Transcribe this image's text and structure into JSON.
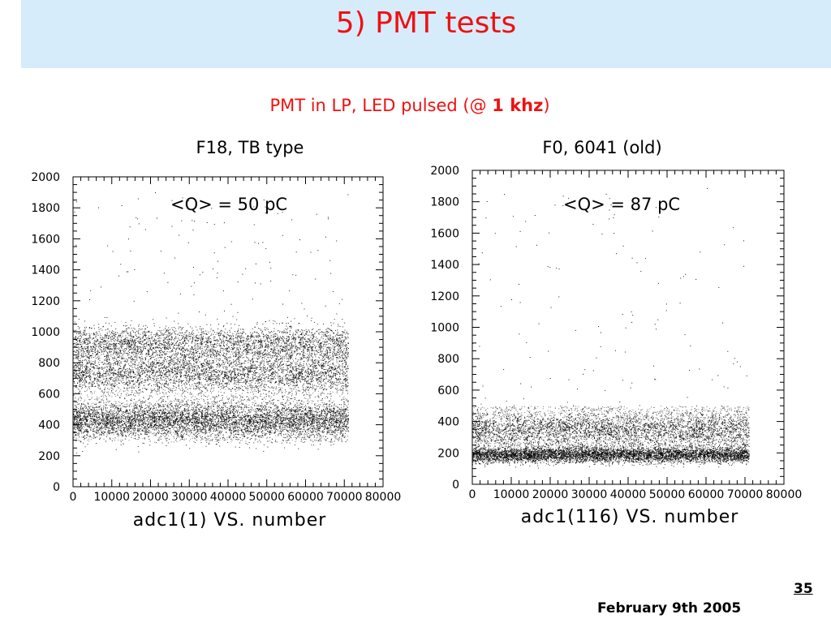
{
  "slide": {
    "title": "5) PMT tests",
    "subtitle_prefix": "PMT in LP, LED pulsed (@ ",
    "subtitle_bold": "1 khz",
    "subtitle_suffix": ")",
    "page_number": "35",
    "date": "February 9th 2005"
  },
  "chart_data": [
    {
      "type": "scatter",
      "title": "F18, TB type",
      "annotation": "<Q> = 50 pC",
      "xlabel": "adc1(1) VS. number",
      "ylabel": "",
      "xlim": [
        0,
        80000
      ],
      "ylim": [
        0,
        2000
      ],
      "x_ticks": [
        "0",
        "10000",
        "20000",
        "30000",
        "40000",
        "50000",
        "60000",
        "70000",
        "80000"
      ],
      "y_ticks": [
        "0",
        "200",
        "400",
        "600",
        "800",
        "1000",
        "1200",
        "1400",
        "1600",
        "1800",
        "2000"
      ],
      "x_range_filled": [
        0,
        71000
      ],
      "bands": [
        {
          "center": 430,
          "width": 60,
          "density": "very high",
          "lower_edge": 290
        },
        {
          "center": 730,
          "width": 60,
          "density": "high"
        },
        {
          "center": 920,
          "width": 60,
          "density": "high",
          "upper_edge": 1010
        }
      ],
      "outliers_y_range": [
        1000,
        1900
      ]
    },
    {
      "type": "scatter",
      "title": "F0, 6041 (old)",
      "annotation": "<Q> = 87 pC",
      "xlabel": "adc1(116) VS. number",
      "ylabel": "",
      "xlim": [
        0,
        80000
      ],
      "ylim": [
        0,
        2000
      ],
      "x_ticks": [
        "0",
        "10000",
        "20000",
        "30000",
        "40000",
        "50000",
        "60000",
        "70000",
        "80000"
      ],
      "y_ticks": [
        "0",
        "200",
        "400",
        "600",
        "800",
        "1000",
        "1200",
        "1400",
        "1600",
        "1800",
        "2000"
      ],
      "x_range_filled": [
        0,
        71000
      ],
      "bands": [
        {
          "center": 190,
          "width": 25,
          "density": "very high",
          "lower_edge": 140
        },
        {
          "center": 350,
          "width": 55,
          "density": "high",
          "upper_edge": 500
        }
      ],
      "outliers_y_range": [
        500,
        1900
      ]
    }
  ]
}
